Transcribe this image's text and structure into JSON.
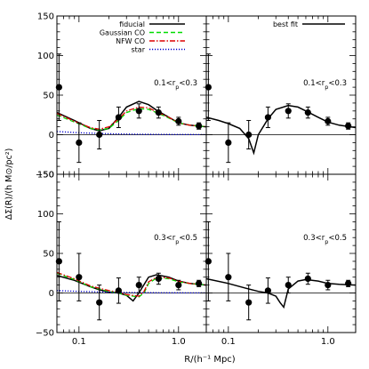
{
  "figure": {
    "xlabel": "R/(h⁻¹ Mpc)",
    "ylabel": "ΔΣ(R)/(h M⊙/pc²)"
  },
  "axes": {
    "xscale": "log",
    "xlim": [
      0.06,
      1.9
    ],
    "ylim": [
      -50,
      150
    ],
    "xticks": [
      {
        "value": 0.1,
        "label": "0.1"
      },
      {
        "value": 1.0,
        "label": "1.0"
      }
    ],
    "yticks": [
      {
        "value": -50,
        "label": "−50"
      },
      {
        "value": 0,
        "label": "0"
      },
      {
        "value": 50,
        "label": "50"
      },
      {
        "value": 100,
        "label": "100"
      },
      {
        "value": 150,
        "label": "150"
      }
    ]
  },
  "legend_left": [
    {
      "label": "fiducial",
      "color": "#000000",
      "dash": "solid"
    },
    {
      "label": "Gaussian CO",
      "color": "#00dd00",
      "dash": "dashed"
    },
    {
      "label": "NFW CO",
      "color": "#dd0000",
      "dash": "dashdot"
    },
    {
      "label": "star",
      "color": "#0000cc",
      "dash": "dotted"
    }
  ],
  "legend_right": [
    {
      "label": "best fit",
      "color": "#000000",
      "dash": "solid"
    }
  ],
  "chart_data": [
    {
      "type": "line",
      "panel": "top-left",
      "annotation": "0.1<r_p<0.3",
      "points": {
        "x": [
          0.063,
          0.1,
          0.16,
          0.25,
          0.4,
          0.63,
          1.0,
          1.6
        ],
        "y": [
          60,
          -10,
          0,
          22,
          30,
          28,
          17,
          11
        ],
        "err": [
          42,
          25,
          18,
          13,
          9,
          7,
          5,
          4
        ]
      },
      "series": [
        {
          "name": "fiducial",
          "x": [
            0.06,
            0.09,
            0.13,
            0.16,
            0.2,
            0.25,
            0.3,
            0.4,
            0.5,
            0.6,
            0.8,
            1.0,
            1.3,
            1.9
          ],
          "y": [
            28,
            18,
            8,
            5,
            8,
            22,
            35,
            42,
            38,
            31,
            22,
            15,
            12,
            10
          ]
        },
        {
          "name": "Gaussian CO",
          "x": [
            0.06,
            0.09,
            0.13,
            0.16,
            0.2,
            0.25,
            0.3,
            0.4,
            0.5,
            0.6,
            0.8,
            1.0,
            1.3,
            1.9
          ],
          "y": [
            25,
            16,
            8,
            6,
            8,
            18,
            28,
            33,
            32,
            28,
            21,
            15,
            12,
            10
          ]
        },
        {
          "name": "NFW CO",
          "x": [
            0.06,
            0.09,
            0.13,
            0.16,
            0.2,
            0.25,
            0.3,
            0.4,
            0.5,
            0.6,
            0.8,
            1.0,
            1.3,
            1.9
          ],
          "y": [
            27,
            17,
            9,
            7,
            10,
            20,
            30,
            35,
            34,
            29,
            22,
            15,
            12,
            10
          ]
        },
        {
          "name": "star",
          "x": [
            0.06,
            0.1,
            0.2,
            0.4,
            0.8,
            1.9
          ],
          "y": [
            4,
            2.5,
            1.2,
            0.6,
            0.3,
            0.1
          ]
        }
      ]
    },
    {
      "type": "line",
      "panel": "top-right",
      "annotation": "0.1<r_p<0.3",
      "points": {
        "x": [
          0.063,
          0.1,
          0.16,
          0.25,
          0.4,
          0.63,
          1.0,
          1.6
        ],
        "y": [
          60,
          -10,
          0,
          22,
          30,
          28,
          17,
          11
        ],
        "err": [
          42,
          25,
          18,
          13,
          9,
          7,
          5,
          4
        ]
      },
      "series": [
        {
          "name": "best fit",
          "x": [
            0.06,
            0.08,
            0.1,
            0.13,
            0.16,
            0.18,
            0.2,
            0.25,
            0.3,
            0.4,
            0.5,
            0.6,
            0.8,
            1.0,
            1.3,
            1.9
          ],
          "y": [
            22,
            18,
            14,
            8,
            -5,
            -23,
            0,
            20,
            32,
            37,
            35,
            30,
            22,
            16,
            12,
            9
          ]
        }
      ]
    },
    {
      "type": "line",
      "panel": "bottom-left",
      "annotation": "0.3<r_p<0.5",
      "points": {
        "x": [
          0.063,
          0.1,
          0.16,
          0.25,
          0.4,
          0.63,
          1.0,
          1.6
        ],
        "y": [
          40,
          20,
          -12,
          3,
          10,
          18,
          10,
          12
        ],
        "err": [
          50,
          30,
          22,
          16,
          10,
          7,
          6,
          4
        ]
      },
      "series": [
        {
          "name": "fiducial",
          "x": [
            0.06,
            0.09,
            0.13,
            0.16,
            0.2,
            0.25,
            0.3,
            0.35,
            0.4,
            0.5,
            0.6,
            0.8,
            1.0,
            1.3,
            1.9
          ],
          "y": [
            22,
            16,
            8,
            4,
            1,
            0,
            -3,
            -10,
            0,
            20,
            23,
            20,
            15,
            12,
            10
          ]
        },
        {
          "name": "Gaussian CO",
          "x": [
            0.06,
            0.09,
            0.13,
            0.16,
            0.2,
            0.25,
            0.3,
            0.4,
            0.45,
            0.5,
            0.6,
            0.8,
            1.0,
            1.3,
            1.9
          ],
          "y": [
            25,
            17,
            8,
            5,
            2,
            0,
            -3,
            -5,
            0,
            12,
            19,
            18,
            14,
            12,
            10
          ]
        },
        {
          "name": "NFW CO",
          "x": [
            0.06,
            0.09,
            0.13,
            0.16,
            0.2,
            0.25,
            0.3,
            0.4,
            0.45,
            0.5,
            0.6,
            0.8,
            1.0,
            1.3,
            1.9
          ],
          "y": [
            26,
            18,
            9,
            6,
            3,
            1,
            -2,
            -4,
            2,
            14,
            20,
            19,
            15,
            12,
            10
          ]
        },
        {
          "name": "star",
          "x": [
            0.06,
            0.1,
            0.2,
            0.4,
            0.8,
            1.9
          ],
          "y": [
            3,
            2,
            1,
            0.5,
            0.2,
            0.1
          ]
        }
      ]
    },
    {
      "type": "line",
      "panel": "bottom-right",
      "annotation": "0.3<r_p<0.5",
      "points": {
        "x": [
          0.063,
          0.1,
          0.16,
          0.25,
          0.4,
          0.63,
          1.0,
          1.6
        ],
        "y": [
          40,
          20,
          -12,
          3,
          10,
          18,
          10,
          12
        ],
        "err": [
          50,
          30,
          22,
          16,
          10,
          7,
          6,
          4
        ]
      },
      "series": [
        {
          "name": "best fit",
          "x": [
            0.06,
            0.1,
            0.15,
            0.2,
            0.25,
            0.3,
            0.33,
            0.36,
            0.4,
            0.5,
            0.6,
            0.8,
            1.0,
            1.3,
            1.9
          ],
          "y": [
            18,
            12,
            6,
            2,
            0,
            -4,
            -12,
            -18,
            5,
            15,
            17,
            15,
            12,
            11,
            10
          ]
        }
      ]
    }
  ]
}
